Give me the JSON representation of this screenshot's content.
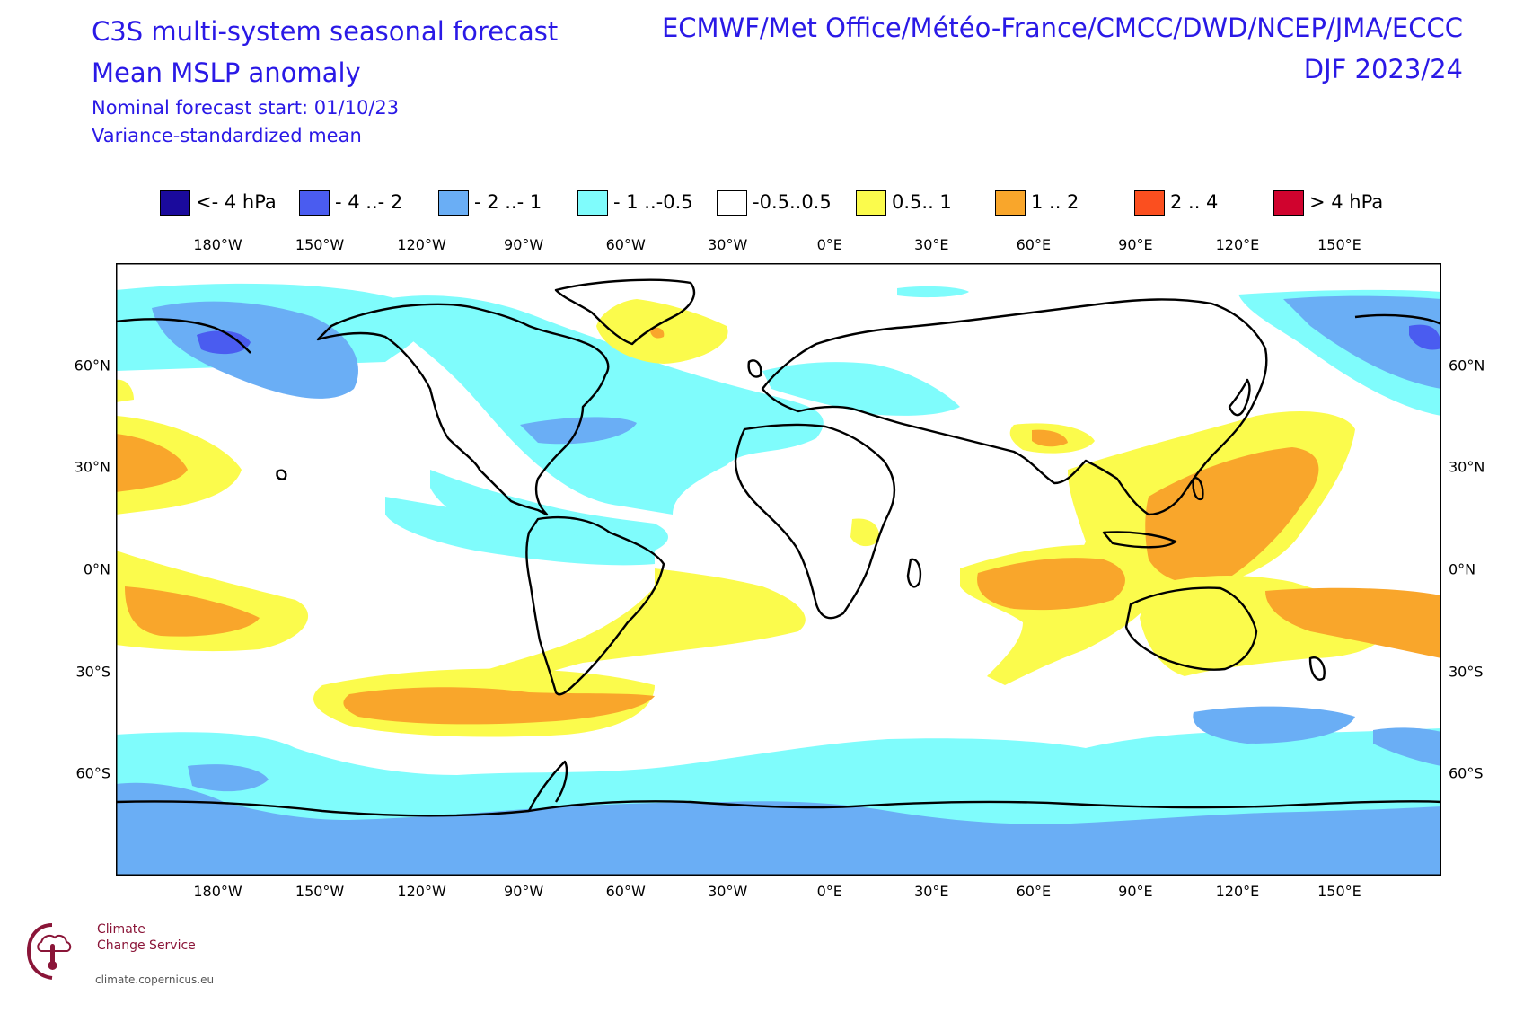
{
  "header": {
    "title_line1": "C3S multi-system seasonal forecast",
    "title_line2": "Mean MSLP anomaly",
    "subtitle_line1": "Nominal forecast start: 01/10/23",
    "subtitle_line2": "Variance-standardized mean",
    "centres": "ECMWF/Met Office/Météo-France/CMCC/DWD/NCEP/JMA/ECCC",
    "season": "DJF 2023/24",
    "text_color": "#2a19e6"
  },
  "legend": [
    {
      "label": "<- 4 hPa",
      "color": "#1a0a9c"
    },
    {
      "label": "- 4 ..- 2",
      "color": "#4a5cf0"
    },
    {
      "label": "- 2 ..- 1",
      "color": "#6aaef5"
    },
    {
      "label": "- 1 ..-0.5",
      "color": "#7ffcfc"
    },
    {
      "label": "-0.5..0.5",
      "color": "#ffffff"
    },
    {
      "label": "0.5.. 1",
      "color": "#fbfb4c"
    },
    {
      "label": "1 .. 2",
      "color": "#f9a62b"
    },
    {
      "label": "2 .. 4",
      "color": "#fb4f1f"
    },
    {
      "label": ">  4 hPa",
      "color": "#d0032e"
    }
  ],
  "axes": {
    "lon_ticks": [
      "180°W",
      "150°W",
      "120°W",
      "90°W",
      "60°W",
      "30°W",
      "0°E",
      "30°E",
      "60°E",
      "90°E",
      "120°E",
      "150°E"
    ],
    "lat_ticks": [
      "60°N",
      "30°N",
      "0°N",
      "30°S",
      "60°S"
    ],
    "projection": "plate-carree",
    "lon_range": [
      -210,
      180
    ],
    "lat_range": [
      -90,
      90
    ]
  },
  "footer": {
    "logo_line1": "Climate",
    "logo_line2": "Change Service",
    "url": "climate.copernicus.eu",
    "logo_color": "#8a1538"
  }
}
